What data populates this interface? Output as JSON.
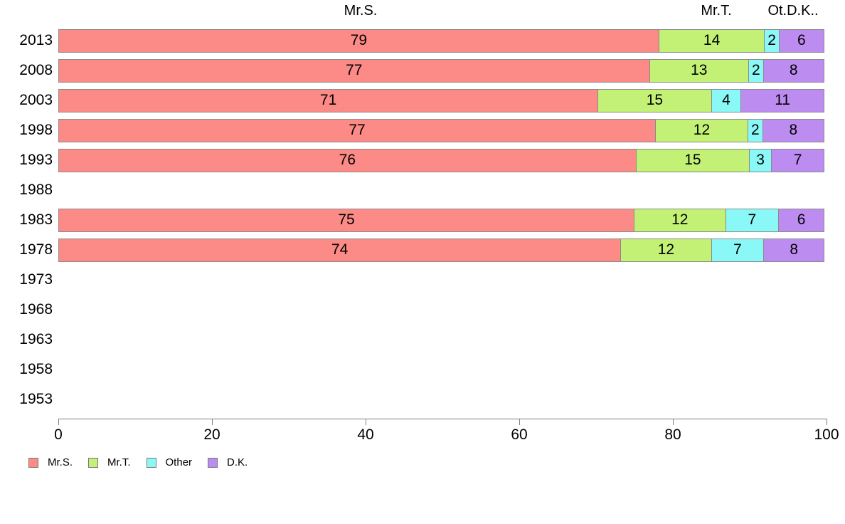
{
  "chart_data": {
    "type": "bar",
    "stacked": true,
    "orientation": "horizontal",
    "title": "",
    "xlabel": "",
    "ylabel": "",
    "xlim": [
      0,
      100
    ],
    "grid": false,
    "categories": [
      "2013",
      "2008",
      "2003",
      "1998",
      "1993",
      "1988",
      "1983",
      "1978",
      "1973",
      "1968",
      "1963",
      "1958",
      "1953"
    ],
    "series": [
      {
        "name": "Mr.S.",
        "color": "#FC8A86",
        "values": [
          79,
          77,
          71,
          77,
          76,
          null,
          75,
          74,
          null,
          null,
          null,
          null,
          null
        ]
      },
      {
        "name": "Mr.T.",
        "color": "#C3F175",
        "values": [
          14,
          13,
          15,
          12,
          15,
          null,
          12,
          12,
          null,
          null,
          null,
          null,
          null
        ]
      },
      {
        "name": "Other",
        "color": "#8AF8F6",
        "values": [
          2,
          2,
          4,
          2,
          3,
          null,
          7,
          7,
          null,
          null,
          null,
          null,
          null
        ]
      },
      {
        "name": "D.K.",
        "color": "#BC8CF1",
        "values": [
          6,
          8,
          11,
          8,
          7,
          null,
          6,
          8,
          null,
          null,
          null,
          null,
          null
        ]
      }
    ],
    "column_headers": [
      "Mr.S.",
      "Mr.T.",
      "Ot.D.K.."
    ],
    "x_ticks": [
      "0",
      "20",
      "40",
      "60",
      "80",
      "100"
    ],
    "legend_position": "bottom-left"
  },
  "colors": {
    "background": "#FFFFFF",
    "bar_border": "#8A8A8A",
    "axis": "#7F7F7F",
    "text": "#000000"
  }
}
